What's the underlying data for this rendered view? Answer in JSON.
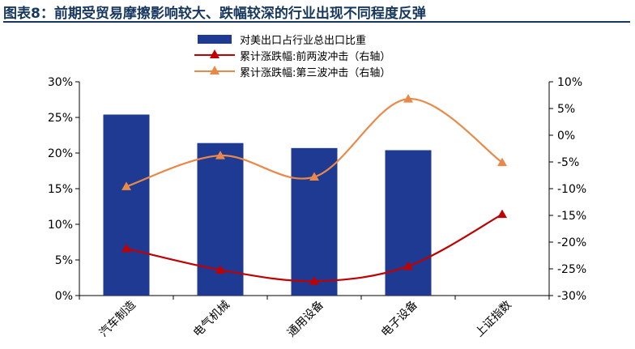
{
  "title": "图表8：前期受贸易摩擦影响较大、跌幅较深的行业出现不同程度反弹",
  "chart_data": {
    "type": "bar",
    "categories": [
      "汽车制造",
      "电气机械",
      "通用设备",
      "电子设备",
      "上证指数"
    ],
    "series": [
      {
        "name": "对美出口占行业总出口比重",
        "kind": "bar",
        "axis": "left",
        "values": [
          25.4,
          21.4,
          20.7,
          20.4,
          null
        ],
        "color": "#1f3a93"
      },
      {
        "name": "累计涨跌幅:前两波冲击（右轴）",
        "kind": "line",
        "axis": "right",
        "values": [
          -21.2,
          -25.2,
          -27.3,
          -24.5,
          -14.8
        ],
        "color": "#c00000"
      },
      {
        "name": "累计涨跌幅:第三波冲击（右轴）",
        "kind": "line",
        "axis": "right",
        "values": [
          -9.6,
          -3.8,
          -7.8,
          6.8,
          -5.1
        ],
        "color": "#e8894a"
      }
    ],
    "left_axis": {
      "ylim": [
        0,
        30
      ],
      "step": 5,
      "tick_labels": [
        "0%",
        "5%",
        "10%",
        "15%",
        "20%",
        "25%",
        "30%"
      ]
    },
    "right_axis": {
      "ylim": [
        -30,
        10
      ],
      "step": 5,
      "tick_labels": [
        "-30%",
        "-25%",
        "-20%",
        "-15%",
        "-10%",
        "-5%",
        "0%",
        "5%",
        "10%"
      ]
    },
    "legend_position": "top-center",
    "grid": false
  }
}
